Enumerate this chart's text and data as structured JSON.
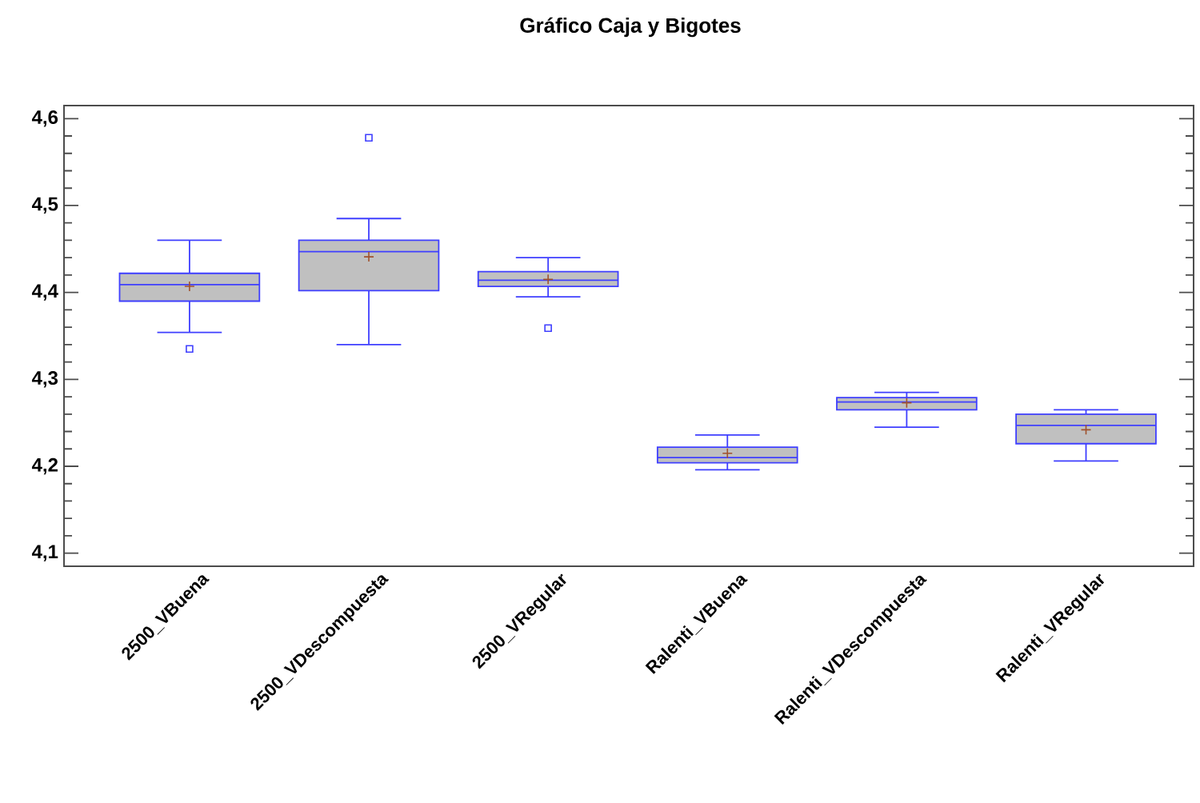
{
  "chart_data": {
    "type": "box",
    "title": "Gráfico Caja y Bigotes",
    "categories": [
      "2500_VBuena",
      "2500_VDescompuesta",
      "2500_VRegular",
      "Ralenti_VBuena",
      "Ralenti_VDescompuesta",
      "Ralenti_VRegular"
    ],
    "color": "#3f3fff",
    "boxes": [
      {
        "low": 4.354,
        "q1": 4.39,
        "median": 4.409,
        "q3": 4.422,
        "high": 4.46,
        "mean": 4.407,
        "outliers": [
          4.335
        ]
      },
      {
        "low": 4.34,
        "q1": 4.402,
        "median": 4.447,
        "q3": 4.46,
        "high": 4.485,
        "mean": 4.441,
        "outliers": [
          4.578
        ]
      },
      {
        "low": 4.395,
        "q1": 4.407,
        "median": 4.414,
        "q3": 4.424,
        "high": 4.44,
        "mean": 4.415,
        "outliers": [
          4.359
        ]
      },
      {
        "low": 4.196,
        "q1": 4.204,
        "median": 4.21,
        "q3": 4.222,
        "high": 4.236,
        "mean": 4.215
      },
      {
        "low": 4.245,
        "q1": 4.265,
        "median": 4.274,
        "q3": 4.279,
        "high": 4.285,
        "mean": 4.273
      },
      {
        "low": 4.206,
        "q1": 4.226,
        "median": 4.247,
        "q3": 4.26,
        "high": 4.265,
        "mean": 4.242
      }
    ],
    "ylim": [
      4.085,
      4.615
    ],
    "yticks": [
      {
        "value": 4.1,
        "label": "4,1"
      },
      {
        "value": 4.2,
        "label": "4,2"
      },
      {
        "value": 4.3,
        "label": "4,3"
      },
      {
        "value": 4.4,
        "label": "4,4"
      },
      {
        "value": 4.5,
        "label": "4,5"
      },
      {
        "value": 4.6,
        "label": "4,6"
      }
    ],
    "grid": false
  }
}
